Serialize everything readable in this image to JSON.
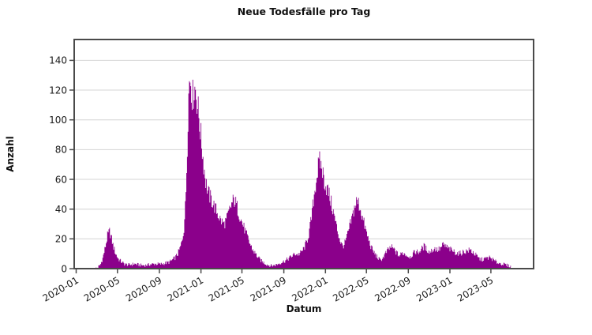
{
  "chart_data": {
    "type": "bar",
    "title": "Neue Todesfälle pro Tag",
    "xlabel": "Datum",
    "ylabel": "Anzahl",
    "bar_color": "#8B008B",
    "grid_color": "#d4d4d4",
    "spine_color": "#4a4a4a",
    "tick_color": "#4a4a4a",
    "y_ticks": [
      0,
      20,
      40,
      60,
      80,
      100,
      120,
      140
    ],
    "ylim": [
      0,
      154
    ],
    "x_tick_labels": [
      "2020-01",
      "2020-05",
      "2020-09",
      "2021-01",
      "2021-05",
      "2021-09",
      "2022-01",
      "2022-05",
      "2022-09",
      "2023-01",
      "2023-05"
    ],
    "x_range": [
      "2020-02-25",
      "2023-06-28"
    ],
    "bin_days": 2,
    "jitter": {
      "rel": 0.1,
      "abs": 0.9
    },
    "series_keypoints": [
      [
        "2020-02-25",
        0
      ],
      [
        "2020-03-04",
        0.8
      ],
      [
        "2020-03-12",
        2.5
      ],
      [
        "2020-03-19",
        7
      ],
      [
        "2020-03-26",
        14
      ],
      [
        "2020-04-02",
        22
      ],
      [
        "2020-04-08",
        25
      ],
      [
        "2020-04-13",
        21
      ],
      [
        "2020-04-19",
        15
      ],
      [
        "2020-04-26",
        10
      ],
      [
        "2020-05-04",
        6.5
      ],
      [
        "2020-05-13",
        4.5
      ],
      [
        "2020-05-22",
        3
      ],
      [
        "2020-06-05",
        2.5
      ],
      [
        "2020-06-20",
        3.2
      ],
      [
        "2020-07-05",
        2.4
      ],
      [
        "2020-07-20",
        2.2
      ],
      [
        "2020-08-05",
        2.8
      ],
      [
        "2020-08-20",
        3.2
      ],
      [
        "2020-09-05",
        3
      ],
      [
        "2020-09-20",
        3.8
      ],
      [
        "2020-10-01",
        4.5
      ],
      [
        "2020-10-10",
        6
      ],
      [
        "2020-10-18",
        7.5
      ],
      [
        "2020-10-25",
        10
      ],
      [
        "2020-11-01",
        14
      ],
      [
        "2020-11-07",
        19
      ],
      [
        "2020-11-12",
        27
      ],
      [
        "2020-11-17",
        45
      ],
      [
        "2020-11-21",
        75
      ],
      [
        "2020-11-25",
        112
      ],
      [
        "2020-11-29",
        130
      ],
      [
        "2020-12-03",
        126
      ],
      [
        "2020-12-07",
        114
      ],
      [
        "2020-12-11",
        120
      ],
      [
        "2020-12-15",
        122
      ],
      [
        "2020-12-19",
        116
      ],
      [
        "2020-12-24",
        106
      ],
      [
        "2020-12-29",
        96
      ],
      [
        "2021-01-02",
        86
      ],
      [
        "2021-01-06",
        77
      ],
      [
        "2021-01-10",
        68
      ],
      [
        "2021-01-15",
        59
      ],
      [
        "2021-01-21",
        52
      ],
      [
        "2021-01-28",
        48
      ],
      [
        "2021-02-05",
        44
      ],
      [
        "2021-02-13",
        40
      ],
      [
        "2021-02-21",
        36
      ],
      [
        "2021-03-01",
        32
      ],
      [
        "2021-03-10",
        30
      ],
      [
        "2021-03-19",
        34
      ],
      [
        "2021-03-27",
        40
      ],
      [
        "2021-04-04",
        45
      ],
      [
        "2021-04-10",
        46
      ],
      [
        "2021-04-16",
        42
      ],
      [
        "2021-04-23",
        37
      ],
      [
        "2021-04-30",
        32
      ],
      [
        "2021-05-08",
        27
      ],
      [
        "2021-05-16",
        22
      ],
      [
        "2021-05-24",
        17
      ],
      [
        "2021-06-01",
        13
      ],
      [
        "2021-06-10",
        10
      ],
      [
        "2021-06-19",
        7
      ],
      [
        "2021-06-28",
        5
      ],
      [
        "2021-07-08",
        3.5
      ],
      [
        "2021-07-18",
        2.3
      ],
      [
        "2021-07-28",
        2
      ],
      [
        "2021-08-08",
        2.5
      ],
      [
        "2021-08-18",
        3.5
      ],
      [
        "2021-08-28",
        4.5
      ],
      [
        "2021-09-07",
        5.5
      ],
      [
        "2021-09-16",
        7
      ],
      [
        "2021-09-25",
        8.5
      ],
      [
        "2021-10-04",
        10
      ],
      [
        "2021-10-13",
        9.5
      ],
      [
        "2021-10-22",
        11
      ],
      [
        "2021-10-31",
        14
      ],
      [
        "2021-11-07",
        18
      ],
      [
        "2021-11-14",
        24
      ],
      [
        "2021-11-21",
        34
      ],
      [
        "2021-11-28",
        48
      ],
      [
        "2021-12-05",
        60
      ],
      [
        "2021-12-11",
        68
      ],
      [
        "2021-12-16",
        72
      ],
      [
        "2021-12-22",
        67
      ],
      [
        "2021-12-28",
        60
      ],
      [
        "2022-01-03",
        55
      ],
      [
        "2022-01-09",
        52
      ],
      [
        "2022-01-16",
        46
      ],
      [
        "2022-01-23",
        39
      ],
      [
        "2022-01-30",
        32
      ],
      [
        "2022-02-06",
        25
      ],
      [
        "2022-02-13",
        19
      ],
      [
        "2022-02-20",
        15
      ],
      [
        "2022-02-27",
        17
      ],
      [
        "2022-03-06",
        22
      ],
      [
        "2022-03-13",
        28
      ],
      [
        "2022-03-20",
        34
      ],
      [
        "2022-03-27",
        41
      ],
      [
        "2022-04-02",
        45
      ],
      [
        "2022-04-08",
        44
      ],
      [
        "2022-04-14",
        40
      ],
      [
        "2022-04-20",
        34
      ],
      [
        "2022-04-27",
        28
      ],
      [
        "2022-05-04",
        22
      ],
      [
        "2022-05-11",
        17
      ],
      [
        "2022-05-18",
        13
      ],
      [
        "2022-05-26",
        10
      ],
      [
        "2022-06-03",
        7.5
      ],
      [
        "2022-06-11",
        5.5
      ],
      [
        "2022-06-19",
        7.5
      ],
      [
        "2022-06-27",
        10.5
      ],
      [
        "2022-07-05",
        13
      ],
      [
        "2022-07-13",
        14.5
      ],
      [
        "2022-07-21",
        13
      ],
      [
        "2022-07-29",
        10.5
      ],
      [
        "2022-08-06",
        8.5
      ],
      [
        "2022-08-14",
        10.5
      ],
      [
        "2022-08-22",
        10
      ],
      [
        "2022-08-30",
        8.5
      ],
      [
        "2022-09-07",
        8
      ],
      [
        "2022-09-15",
        10
      ],
      [
        "2022-09-23",
        11.5
      ],
      [
        "2022-10-01",
        11
      ],
      [
        "2022-10-09",
        13
      ],
      [
        "2022-10-17",
        15
      ],
      [
        "2022-10-25",
        13
      ],
      [
        "2022-11-02",
        11
      ],
      [
        "2022-11-10",
        12.5
      ],
      [
        "2022-11-18",
        13.5
      ],
      [
        "2022-11-26",
        12.5
      ],
      [
        "2022-12-04",
        13.5
      ],
      [
        "2022-12-12",
        16
      ],
      [
        "2022-12-20",
        15
      ],
      [
        "2022-12-28",
        13.5
      ],
      [
        "2023-01-05",
        12.5
      ],
      [
        "2023-01-13",
        11.5
      ],
      [
        "2023-01-21",
        10.5
      ],
      [
        "2023-01-29",
        10
      ],
      [
        "2023-02-06",
        11
      ],
      [
        "2023-02-14",
        11.5
      ],
      [
        "2023-02-22",
        12
      ],
      [
        "2023-03-02",
        12.5
      ],
      [
        "2023-03-10",
        11
      ],
      [
        "2023-03-18",
        9
      ],
      [
        "2023-03-26",
        7
      ],
      [
        "2023-04-03",
        6
      ],
      [
        "2023-04-11",
        6.5
      ],
      [
        "2023-04-19",
        7
      ],
      [
        "2023-04-27",
        7.5
      ],
      [
        "2023-05-05",
        6.5
      ],
      [
        "2023-05-13",
        5
      ],
      [
        "2023-05-21",
        4
      ],
      [
        "2023-05-29",
        3.5
      ],
      [
        "2023-06-06",
        3
      ],
      [
        "2023-06-14",
        2.5
      ],
      [
        "2023-06-21",
        2
      ],
      [
        "2023-06-28",
        1.5
      ]
    ],
    "legend": null,
    "grid": "horizontal-only"
  }
}
